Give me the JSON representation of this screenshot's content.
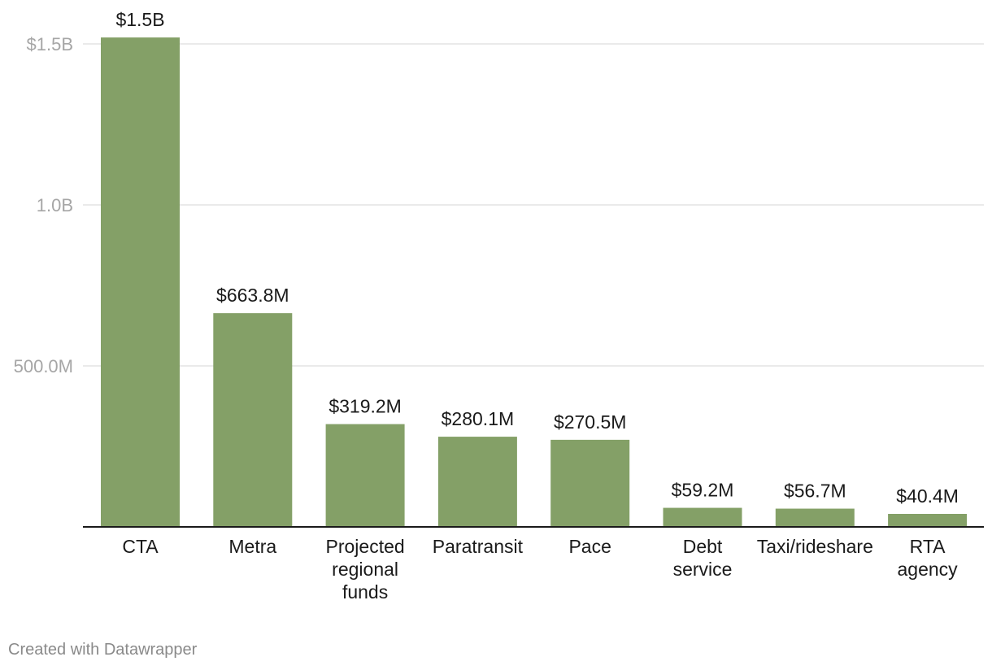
{
  "chart_data": {
    "type": "bar",
    "title": "",
    "xlabel": "",
    "ylabel": "",
    "ylim": [
      0,
      1500000000
    ],
    "grid": true,
    "categories": [
      [
        "CTA"
      ],
      [
        "Metra"
      ],
      [
        "Projected",
        "regional",
        "funds"
      ],
      [
        "Paratransit"
      ],
      [
        "Pace"
      ],
      [
        "Debt",
        "service"
      ],
      [
        "Taxi/rideshare"
      ],
      [
        "RTA",
        "agency"
      ]
    ],
    "values": [
      1520000000,
      663800000,
      319200000,
      280100000,
      270500000,
      59200000,
      56700000,
      40400000
    ],
    "value_labels": [
      "$1.5B",
      "$663.8M",
      "$319.2M",
      "$280.1M",
      "$270.5M",
      "$59.2M",
      "$56.7M",
      "$40.4M"
    ],
    "y_ticks": [
      {
        "value": 500000000,
        "label": "500.0M"
      },
      {
        "value": 1000000000,
        "label": "1.0B"
      },
      {
        "value": 1500000000,
        "label": "$1.5B"
      }
    ],
    "bar_color": "#84a067"
  },
  "footer": {
    "credit": "Created with Datawrapper"
  }
}
